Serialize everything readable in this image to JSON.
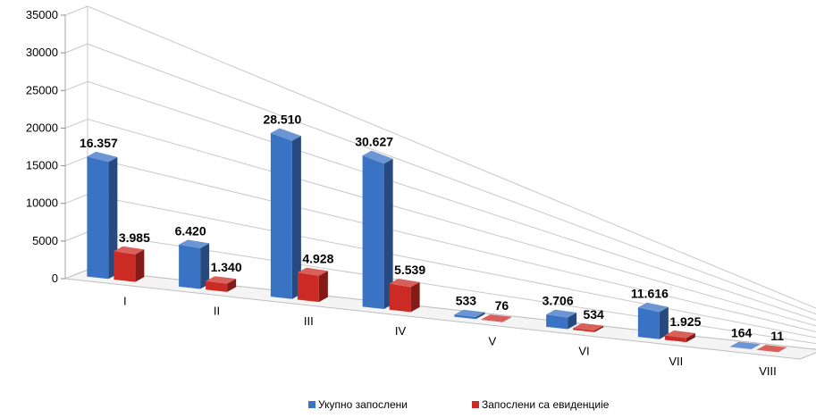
{
  "chart_data": {
    "type": "bar",
    "style": "3d-clustered-column",
    "categories": [
      "I",
      "II",
      "III",
      "IV",
      "V",
      "VI",
      "VII",
      "VIII"
    ],
    "series": [
      {
        "name": "Укупно запослени",
        "color": "#3a72c4",
        "values": [
          16357,
          6420,
          28510,
          30627,
          533,
          3706,
          11616,
          164
        ],
        "labels": [
          "16.357",
          "6.420",
          "28.510",
          "30.627",
          "533",
          "3.706",
          "11.616",
          "164"
        ]
      },
      {
        "name": "Запослени са евиденциіе",
        "color": "#cc2a24",
        "values": [
          3985,
          1340,
          4928,
          5539,
          76,
          534,
          1925,
          11
        ],
        "labels": [
          "3.985",
          "1.340",
          "4.928",
          "5.539",
          "76",
          "534",
          "1.925",
          "11"
        ]
      }
    ],
    "yticks": [
      "0",
      "5000",
      "10000",
      "15000",
      "20000",
      "25000",
      "30000",
      "35000"
    ],
    "ylim": [
      0,
      35000
    ],
    "grid": true,
    "legend_position": "bottom"
  }
}
